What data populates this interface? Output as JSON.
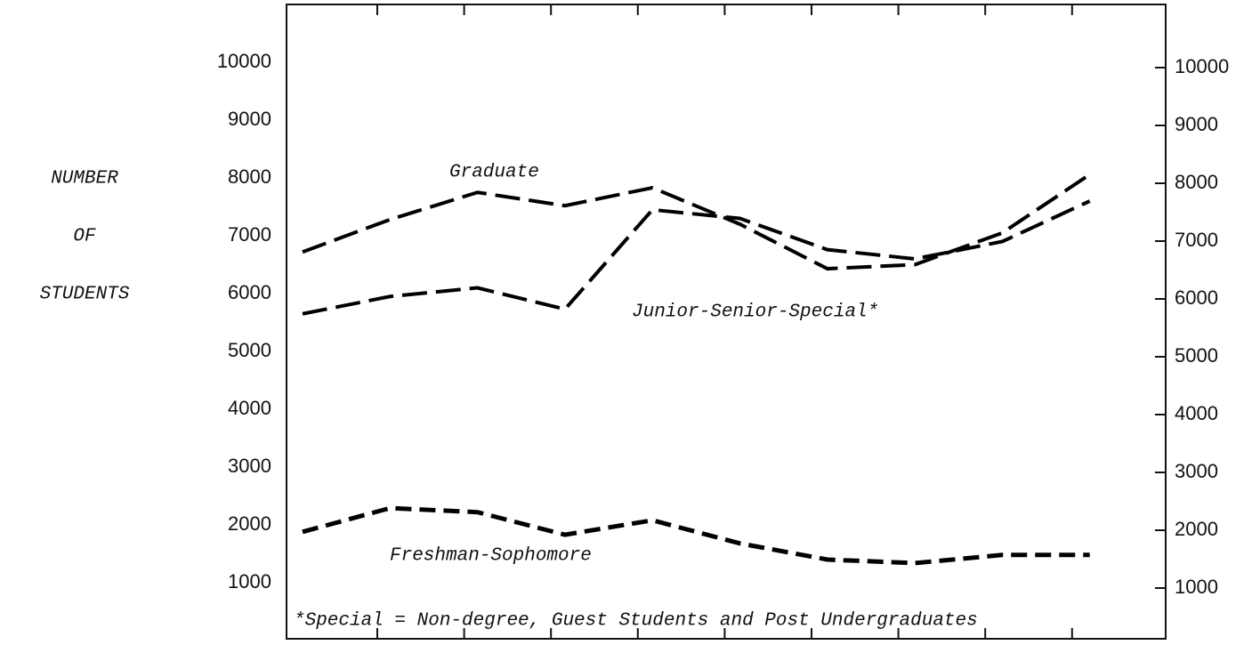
{
  "chart_data": {
    "type": "line",
    "y_label": [
      "NUMBER",
      "OF",
      "STUDENTS"
    ],
    "categories": [
      null,
      null,
      null,
      null,
      null,
      null,
      null,
      null,
      null,
      null
    ],
    "series": [
      {
        "name": "Graduate",
        "color": "#000000",
        "values": [
          6720,
          7280,
          7750,
          7520,
          7830,
          7200,
          6430,
          6500,
          7050,
          8060
        ]
      },
      {
        "name": "Junior-Senior-Special*",
        "color": "#000000",
        "values": [
          5650,
          5950,
          6100,
          5730,
          7450,
          7300,
          6760,
          6600,
          6900,
          7600
        ]
      },
      {
        "name": "Freshman-Sophomore",
        "color": "#000000",
        "values": [
          1880,
          2290,
          2220,
          1830,
          2080,
          1680,
          1400,
          1340,
          1480,
          1480
        ]
      }
    ],
    "annotations": [
      "*Special = Non-degree, Guest Students and Post Undergraduates"
    ],
    "ylim": [
      0,
      11000
    ],
    "yticks": [
      1000,
      2000,
      3000,
      4000,
      5000,
      6000,
      7000,
      8000,
      9000,
      10000
    ],
    "y2lim": [
      0,
      11000
    ],
    "y2ticks": [
      1000,
      2000,
      3000,
      4000,
      5000,
      6000,
      7000,
      8000,
      9000,
      10000
    ],
    "grid": false
  }
}
